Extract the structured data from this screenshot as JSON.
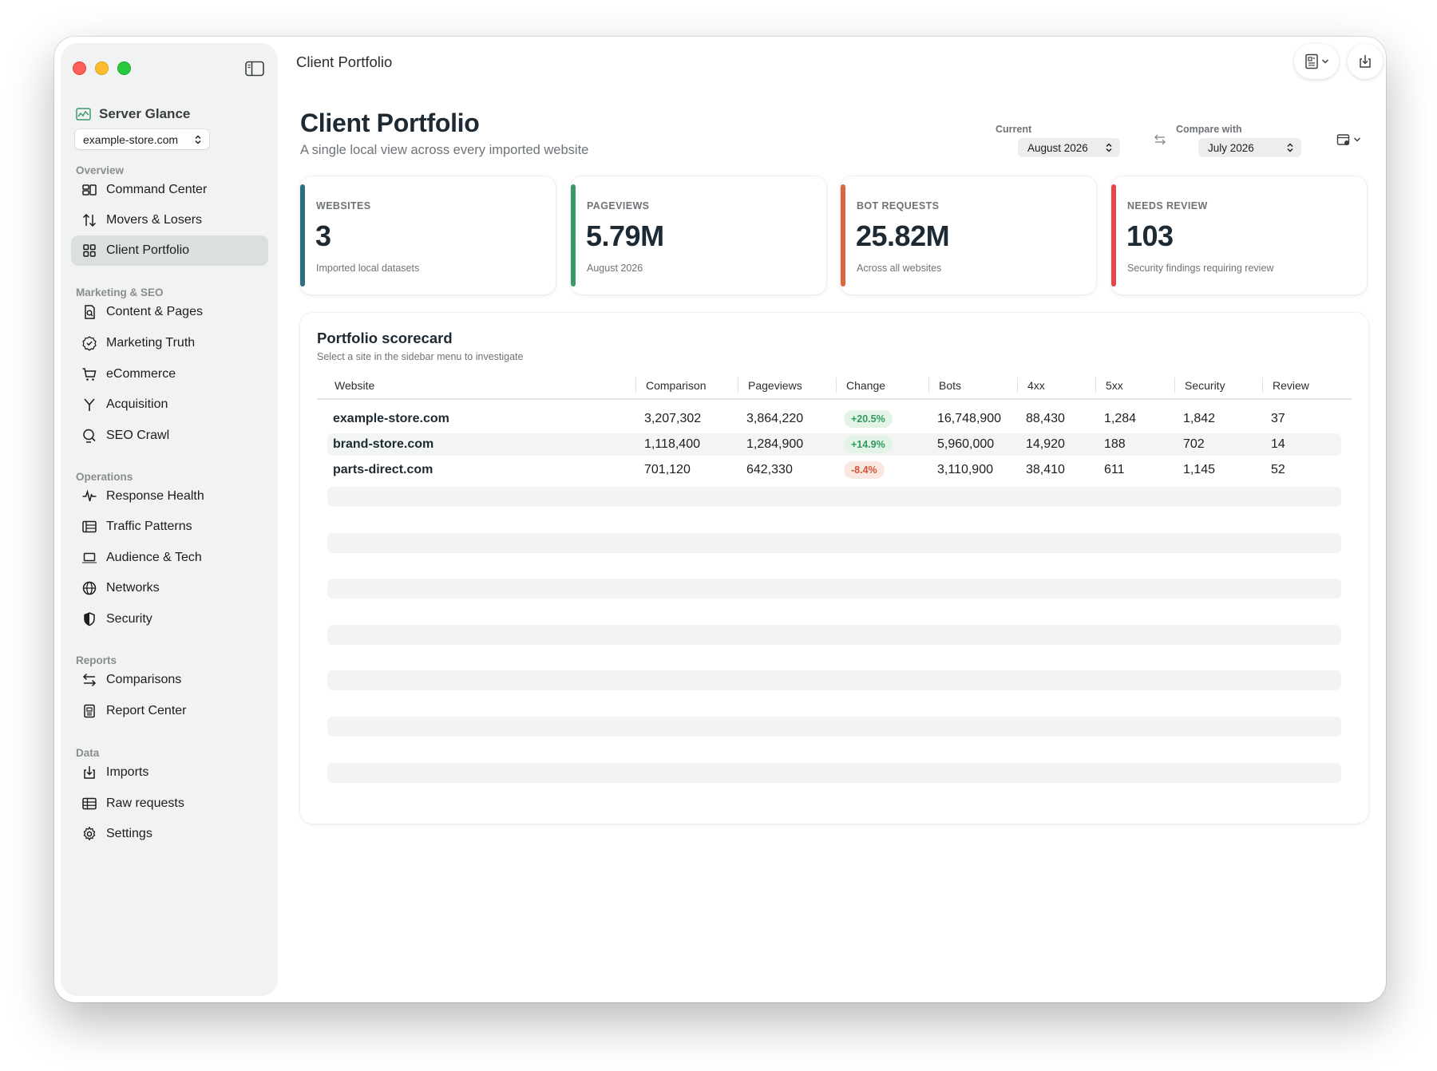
{
  "window": {
    "title": "Client Portfolio"
  },
  "sidebar": {
    "brand": "Server Glance",
    "site_selector": "example-store.com",
    "sections": [
      {
        "label": "Overview",
        "items": [
          {
            "label": "Command Center",
            "icon": "command-center-icon"
          },
          {
            "label": "Movers & Losers",
            "icon": "arrows-up-down-icon"
          },
          {
            "label": "Client Portfolio",
            "icon": "grid-icon",
            "active": true
          }
        ]
      },
      {
        "label": "Marketing & SEO",
        "items": [
          {
            "label": "Content & Pages",
            "icon": "document-search-icon"
          },
          {
            "label": "Marketing Truth",
            "icon": "seal-check-icon"
          },
          {
            "label": "eCommerce",
            "icon": "cart-icon"
          },
          {
            "label": "Acquisition",
            "icon": "funnel-branch-icon"
          },
          {
            "label": "SEO Crawl",
            "icon": "spider-search-icon"
          }
        ]
      },
      {
        "label": "Operations",
        "items": [
          {
            "label": "Response Health",
            "icon": "pulse-icon"
          },
          {
            "label": "Traffic Patterns",
            "icon": "list-timeline-icon"
          },
          {
            "label": "Audience & Tech",
            "icon": "laptop-icon"
          },
          {
            "label": "Networks",
            "icon": "globe-icon"
          },
          {
            "label": "Security",
            "icon": "shield-icon"
          }
        ]
      },
      {
        "label": "Reports",
        "items": [
          {
            "label": "Comparisons",
            "icon": "swap-arrows-icon"
          },
          {
            "label": "Report Center",
            "icon": "report-icon"
          }
        ]
      },
      {
        "label": "Data",
        "items": [
          {
            "label": "Imports",
            "icon": "import-icon"
          },
          {
            "label": "Raw requests",
            "icon": "table-icon"
          },
          {
            "label": "Settings",
            "icon": "gear-icon"
          }
        ]
      }
    ]
  },
  "header": {
    "title": "Client Portfolio",
    "subtitle": "A single local view across every imported website",
    "current_label": "Current",
    "current_value": "August 2026",
    "compare_label": "Compare with",
    "compare_value": "July 2026"
  },
  "kpis": [
    {
      "label": "WEBSITES",
      "value": "3",
      "note": "Imported local datasets",
      "color": "#2f6e7e"
    },
    {
      "label": "PAGEVIEWS",
      "value": "5.79M",
      "note": "August 2026",
      "color": "#3a9a66"
    },
    {
      "label": "BOT REQUESTS",
      "value": "25.82M",
      "note": "Across all websites",
      "color": "#d9683a"
    },
    {
      "label": "NEEDS REVIEW",
      "value": "103",
      "note": "Security findings requiring review",
      "color": "#e14848"
    }
  ],
  "scorecard": {
    "title": "Portfolio scorecard",
    "subtitle": "Select a site in the sidebar menu to investigate",
    "columns": [
      "Website",
      "Comparison",
      "Pageviews",
      "Change",
      "Bots",
      "4xx",
      "5xx",
      "Security",
      "Review"
    ],
    "rows": [
      {
        "website": "example-store.com",
        "comparison": "3,207,302",
        "pageviews": "3,864,220",
        "change": "+20.5%",
        "trend": "up",
        "bots": "16,748,900",
        "e4xx": "88,430",
        "e5xx": "1,284",
        "security": "1,842",
        "review": "37"
      },
      {
        "website": "brand-store.com",
        "comparison": "1,118,400",
        "pageviews": "1,284,900",
        "change": "+14.9%",
        "trend": "up",
        "bots": "5,960,000",
        "e4xx": "14,920",
        "e5xx": "188",
        "security": "702",
        "review": "14"
      },
      {
        "website": "parts-direct.com",
        "comparison": "701,120",
        "pageviews": "642,330",
        "change": "-8.4%",
        "trend": "down",
        "bots": "3,110,900",
        "e4xx": "38,410",
        "e5xx": "611",
        "security": "1,145",
        "review": "52"
      }
    ]
  },
  "colors": {
    "positive": "#2f9a59",
    "negative": "#d2553a",
    "brand": "#3a9a66"
  }
}
